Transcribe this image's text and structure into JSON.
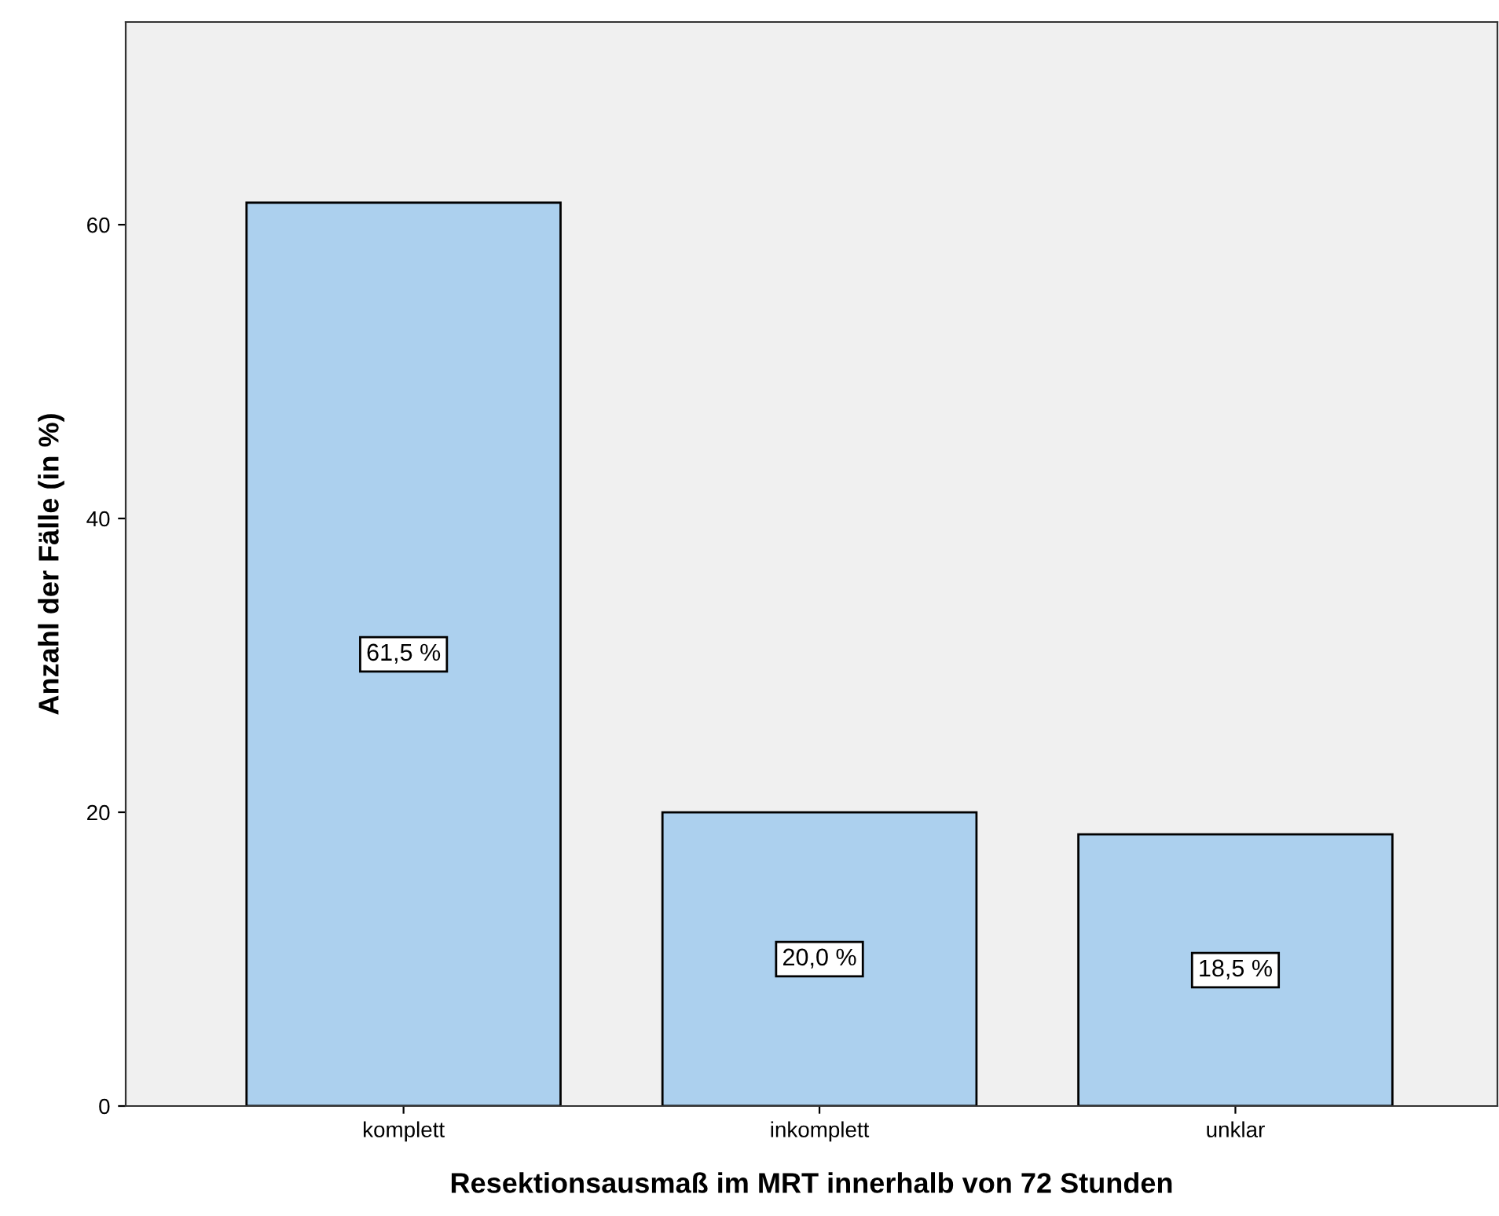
{
  "chart_data": {
    "type": "bar",
    "xlabel": "Resektionsausmaß im MRT innerhalb von 72 Stunden",
    "ylabel": "Anzahl der Fälle (in %)",
    "categories": [
      "komplett",
      "inkomplett",
      "unklar"
    ],
    "values": [
      61.5,
      20.0,
      18.5
    ],
    "value_labels": [
      "61,5 %",
      "20,0 %",
      "18,5 %"
    ],
    "color": "#acd0ee",
    "ylim": [
      0,
      73.8
    ],
    "yticks": [
      0,
      20,
      40,
      60
    ],
    "grid": false
  }
}
